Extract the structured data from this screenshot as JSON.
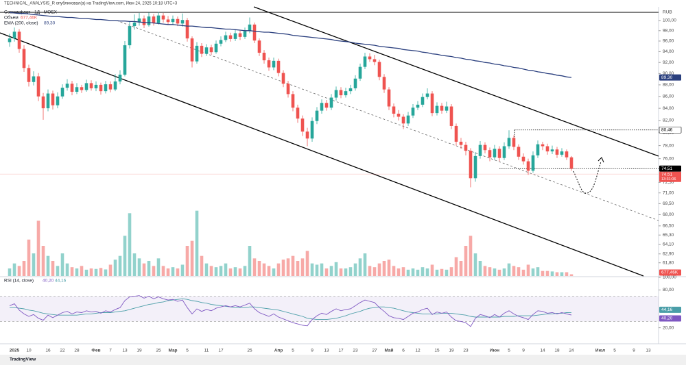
{
  "header": {
    "author": "TECHNICAL_ANALYSIS_R опубликовал(а) на TradingView.com, Июн 24, 2025 10:18 UTC+3",
    "brand": "TradingView"
  },
  "chart_data": {
    "type": "candlestick",
    "title": "Совкомфлот · 1Д · MOEX",
    "currency": "RUB",
    "log_scale": true,
    "up_color": "#26a69a",
    "down_color": "#ef5350",
    "categories": [
      null,
      "2025",
      null,
      null,
      "10",
      null,
      null,
      null,
      "16",
      null,
      null,
      "22",
      null,
      null,
      "28",
      null,
      null,
      null,
      "Фев",
      null,
      null,
      "7",
      null,
      null,
      "13",
      null,
      null,
      "19",
      null,
      null,
      null,
      "25",
      null,
      null,
      "Мар",
      null,
      null,
      "5",
      null,
      null,
      null,
      "11",
      null,
      null,
      "17",
      null,
      null,
      null,
      null,
      null,
      "25",
      null,
      null,
      null,
      null,
      null,
      "Апр",
      null,
      null,
      "5",
      null,
      null,
      null,
      "9",
      null,
      null,
      "13",
      null,
      null,
      "17",
      null,
      null,
      "23",
      null,
      null,
      null,
      "27",
      null,
      null,
      "Май",
      null,
      null,
      "6",
      null,
      null,
      "12",
      null,
      null,
      null,
      "15",
      null,
      null,
      "19",
      null,
      null,
      "23",
      null,
      null,
      null,
      null,
      null,
      "Июн",
      null,
      null,
      "5",
      null,
      null,
      "9",
      null,
      null,
      null,
      "14",
      null,
      null,
      "18",
      null,
      null,
      "24",
      null,
      null,
      null,
      null,
      null,
      "Июл",
      null,
      null,
      "5",
      null,
      null,
      null,
      "9",
      null,
      null,
      "13"
    ],
    "open": [
      95.8,
      96.5,
      97.8,
      94.5,
      91,
      88.5,
      89.5,
      86,
      84,
      86.5,
      84.5,
      86,
      87.5,
      88.2,
      86.8,
      87.6,
      87.1,
      88.3,
      87.4,
      88,
      86.9,
      88.1,
      87.2,
      88.6,
      89.8,
      95.2,
      98.9,
      99.6,
      100.4,
      99.1,
      100.8,
      99.5,
      101,
      100.2,
      99.7,
      100.3,
      99.4,
      100.1,
      96.5,
      92.2,
      95.1,
      93.6,
      94.8,
      93.9,
      95.5,
      96.2,
      97.1,
      96.4,
      97.5,
      96.8,
      97.9,
      99.2,
      96.1,
      93.8,
      92.4,
      91.1,
      92.3,
      90.1,
      88.2,
      86.4,
      84.1,
      82.3,
      80.2,
      79.1,
      81.9,
      83.6,
      84.9,
      84.1,
      85.8,
      87.1,
      86.2,
      86.9,
      87.4,
      89.1,
      91.2,
      93.1,
      92.6,
      92.1,
      89.4,
      87.2,
      84.3,
      83.1,
      82.6,
      81.5,
      82.8,
      84.1,
      84.6,
      85.9,
      86.5,
      83.2,
      84.4,
      83.6,
      84.3,
      81.1,
      78.6,
      78.1,
      77.2,
      73.1,
      76.4,
      78.1,
      77.3,
      76.2,
      77.5,
      76.1,
      77.9,
      79.2,
      77.8,
      76.3,
      75.6,
      74.2,
      76.5,
      78.2,
      77.9,
      77.1,
      77.4,
      76.6,
      77.1,
      76.2,
      null,
      null,
      null,
      null,
      null,
      null,
      null,
      null,
      null,
      null,
      null,
      null,
      null,
      null,
      null,
      null
    ],
    "high": [
      97.4,
      98.6,
      98.3,
      95.2,
      91.6,
      90.4,
      90.1,
      86.6,
      87.2,
      87,
      86.7,
      88.1,
      89,
      88.7,
      88.3,
      88,
      88.9,
      88.8,
      88.6,
      88.4,
      88.7,
      88.6,
      89.9,
      90.6,
      96,
      99.8,
      101.2,
      101.5,
      101,
      101.6,
      101.3,
      101.7,
      101.5,
      100.9,
      101,
      100.8,
      101.4,
      100.5,
      96.9,
      95.8,
      95.6,
      95.4,
      95.3,
      96.1,
      96.9,
      97.8,
      97.6,
      98.2,
      98,
      98.6,
      100.6,
      99.6,
      96.5,
      94.3,
      92.9,
      92.9,
      92.7,
      90.6,
      88.7,
      86.9,
      84.6,
      82.8,
      80.8,
      82.5,
      84.2,
      85.5,
      85.4,
      86.4,
      87.7,
      87.6,
      87.5,
      88,
      89.7,
      91.8,
      93.8,
      93.7,
      93.4,
      92.5,
      89.9,
      87.6,
      84.8,
      83.7,
      83,
      83.4,
      84.7,
      85.2,
      86.5,
      87.4,
      86.9,
      85,
      84.9,
      85.1,
      84.7,
      81.5,
      79.2,
      78.6,
      77.6,
      77,
      78.7,
      78.5,
      77.7,
      78.1,
      77.9,
      78.5,
      80.4,
      79.6,
      78.2,
      76.8,
      76,
      77.1,
      78.8,
      78.6,
      78.3,
      78,
      77.8,
      77.6,
      77.4,
      76.4,
      null,
      null,
      null,
      null,
      null,
      null,
      null,
      null,
      null,
      null,
      null,
      null,
      null,
      null,
      null,
      null
    ],
    "low": [
      94.9,
      95.9,
      93.8,
      90.3,
      87.7,
      87.9,
      85.2,
      82.1,
      83.5,
      83.8,
      84,
      85.6,
      87,
      86.2,
      86.4,
      86.6,
      86.8,
      87,
      86.9,
      86.3,
      86.5,
      86.7,
      86.9,
      88.1,
      89.5,
      94.6,
      98.2,
      99,
      98.5,
      98.8,
      99,
      99.2,
      99.6,
      99.1,
      99.2,
      98.9,
      98.8,
      95.9,
      91.1,
      91.8,
      93,
      93.2,
      93.4,
      93.6,
      95,
      95.8,
      95.9,
      96,
      96.2,
      96.4,
      97.5,
      95.6,
      93.2,
      91.8,
      90.5,
      90.6,
      89.5,
      87.6,
      85.8,
      83.5,
      81.6,
      79.5,
      77.9,
      78.6,
      81.4,
      83.1,
      83.6,
      83.7,
      85.3,
      85.7,
      85.8,
      86.4,
      87,
      88.7,
      90.8,
      92.1,
      91.5,
      88.8,
      86.6,
      83.7,
      82.5,
      82,
      80.6,
      81.1,
      82.4,
      83.7,
      84.2,
      85.5,
      82.7,
      82.8,
      83.1,
      83.2,
      80.6,
      78,
      77.5,
      76.5,
      71.8,
      72.6,
      76,
      76.8,
      75.6,
      75.8,
      75.6,
      75.8,
      77.5,
      77.3,
      75.8,
      75.1,
      73.6,
      73.9,
      76.1,
      77.3,
      76.6,
      76.7,
      76.1,
      76.3,
      75.8,
      74.2,
      null,
      null,
      null,
      null,
      null,
      null,
      null,
      null,
      null,
      null,
      null,
      null,
      null,
      null,
      null,
      null
    ],
    "close": [
      96.5,
      97.8,
      94.5,
      91,
      88.5,
      89.5,
      86,
      84,
      86.5,
      84.5,
      86,
      87.5,
      88.2,
      86.8,
      87.6,
      87.1,
      88.3,
      87.4,
      88,
      86.9,
      88.1,
      87.2,
      88.6,
      89.8,
      95.2,
      98.9,
      99.6,
      100.4,
      99.1,
      100.8,
      99.5,
      101,
      100.2,
      99.7,
      100.3,
      99.4,
      100.1,
      96.5,
      92.2,
      95.1,
      93.6,
      94.8,
      93.9,
      95.5,
      96.2,
      97.1,
      96.4,
      97.5,
      96.8,
      97.9,
      99.2,
      96.1,
      93.8,
      92.4,
      91.1,
      92.3,
      90.1,
      88.2,
      86.4,
      84.1,
      82.3,
      80.2,
      79.1,
      81.9,
      83.6,
      84.9,
      84.1,
      85.8,
      87.1,
      86.2,
      86.9,
      87.4,
      89.1,
      91.2,
      93.1,
      92.6,
      92.1,
      89.4,
      87.2,
      84.3,
      83.1,
      82.6,
      81.5,
      82.8,
      84.1,
      84.6,
      85.9,
      86.5,
      83.2,
      84.4,
      83.6,
      84.3,
      81.1,
      78.6,
      78.1,
      77.2,
      73.1,
      76.4,
      78.1,
      77.3,
      76.2,
      77.5,
      76.1,
      77.9,
      79.2,
      77.8,
      76.3,
      75.6,
      74.2,
      76.5,
      78.2,
      77.9,
      77.1,
      77.4,
      76.6,
      77.1,
      76.2,
      74.51,
      null,
      null,
      null,
      null,
      null,
      null,
      null,
      null,
      null,
      null,
      null,
      null,
      null,
      null,
      null,
      null
    ],
    "last_price_label": "74,51",
    "countdown": "13:31:06",
    "level": {
      "value": 80.46,
      "label": "80,46"
    },
    "ylim": [
      60.2,
      102.75
    ],
    "yticks": [
      {
        "value": 100,
        "label": "100,00"
      },
      {
        "value": 98,
        "label": "98,00"
      },
      {
        "value": 96,
        "label": "96,00"
      },
      {
        "value": 94,
        "label": "94,00"
      },
      {
        "value": 92,
        "label": "92,00"
      },
      {
        "value": 90,
        "label": "90,00"
      },
      {
        "value": 88,
        "label": "88,00"
      },
      {
        "value": 86,
        "label": "86,00"
      },
      {
        "value": 84,
        "label": "84,00"
      },
      {
        "value": 82,
        "label": "82,00"
      },
      {
        "value": 80,
        "label": "80,00"
      },
      {
        "value": 78,
        "label": "78,00"
      },
      {
        "value": 76,
        "label": "76,00"
      },
      {
        "value": 72.5,
        "label": "72,50"
      },
      {
        "value": 71,
        "label": "71,00"
      },
      {
        "value": 69.5,
        "label": "69,50"
      },
      {
        "value": 68,
        "label": "68,00"
      },
      {
        "value": 66.5,
        "label": "66,50"
      },
      {
        "value": 65.3,
        "label": "65,30"
      },
      {
        "value": 64.1,
        "label": "64,10"
      },
      {
        "value": 62.9,
        "label": "62,90"
      },
      {
        "value": 61.8,
        "label": "61,80"
      }
    ],
    "volume": {
      "name": "Объем",
      "vlim": [
        0,
        30000
      ],
      "last_label": "677,46K",
      "values": [
        3000,
        5000,
        4000,
        6000,
        14500,
        9000,
        22000,
        12000,
        8000,
        6000,
        4000,
        9000,
        5000,
        3500,
        3000,
        4000,
        2500,
        3000,
        2800,
        3200,
        2600,
        4500,
        6500,
        8000,
        16000,
        25000,
        9000,
        7000,
        5000,
        6000,
        4000,
        7000,
        4000,
        3000,
        3500,
        3000,
        4500,
        12000,
        14000,
        26000,
        8000,
        5000,
        4000,
        3500,
        4000,
        5000,
        3000,
        3500,
        3000,
        4000,
        12000,
        7000,
        6000,
        5000,
        4000,
        3000,
        5000,
        6500,
        7000,
        8000,
        6000,
        7000,
        10000,
        5000,
        4500,
        5000,
        3000,
        4000,
        5500,
        3000,
        3000,
        3500,
        5000,
        7000,
        9000,
        4000,
        3500,
        5000,
        6000,
        6500,
        4000,
        3000,
        3500,
        2500,
        3000,
        2500,
        3500,
        3000,
        4500,
        2500,
        2800,
        2500,
        3500,
        7500,
        6000,
        12000,
        16000,
        9000,
        6000,
        4000,
        3500,
        3000,
        2500,
        3000,
        5000,
        4000,
        3500,
        2500,
        4500,
        3000,
        3500,
        2000,
        2000,
        1800,
        1500,
        1500,
        1500,
        677.46,
        null,
        null,
        null,
        null,
        null,
        null,
        null,
        null,
        null,
        null,
        null,
        null,
        null,
        null,
        null,
        null
      ]
    },
    "ema": {
      "name": "EMA (200, close)",
      "color": "#2a3f7e",
      "last_label": "89,30",
      "values": [
        101.6,
        101.5,
        101.4,
        101.4,
        101.3,
        101.2,
        101.1,
        101.0,
        100.9,
        100.8,
        100.8,
        100.7,
        100.6,
        100.6,
        100.5,
        100.4,
        100.4,
        100.3,
        100.2,
        100.2,
        100.1,
        100.0,
        100.0,
        99.9,
        99.9,
        99.8,
        99.8,
        99.7,
        99.6,
        99.6,
        99.5,
        99.4,
        99.3,
        99.2,
        99.2,
        99.1,
        99.0,
        98.9,
        98.9,
        98.8,
        98.7,
        98.6,
        98.6,
        98.5,
        98.4,
        98.3,
        98.3,
        98.2,
        98.1,
        98.0,
        98.0,
        97.9,
        97.8,
        97.7,
        97.7,
        97.6,
        97.5,
        97.4,
        97.3,
        97.1,
        97.0,
        96.9,
        96.8,
        96.7,
        96.6,
        96.5,
        96.4,
        96.3,
        96.1,
        96.0,
        95.9,
        95.8,
        95.6,
        95.5,
        95.4,
        95.3,
        95.2,
        95.0,
        94.9,
        94.8,
        94.7,
        94.6,
        94.4,
        94.3,
        94.2,
        94.1,
        93.9,
        93.8,
        93.6,
        93.5,
        93.3,
        93.2,
        93.1,
        92.9,
        92.8,
        92.6,
        92.5,
        92.3,
        92.2,
        92.0,
        91.9,
        91.7,
        91.6,
        91.4,
        91.3,
        91.1,
        91.0,
        90.8,
        90.6,
        90.5,
        90.3,
        90.2,
        90.0,
        89.9,
        89.7,
        89.6,
        89.4,
        89.3,
        null,
        null,
        null,
        null,
        null,
        null,
        null,
        null,
        null,
        null,
        null,
        null,
        null,
        null,
        null,
        null
      ]
    },
    "rsi": {
      "name": "RSI (14, close)",
      "color": "#7e57c2",
      "last_label": "40,20",
      "ma_color": "#4a9ea8",
      "ma_label": "44,16",
      "ylim": [
        0,
        100
      ],
      "bands": [
        30,
        70
      ],
      "yticks": [
        {
          "value": 100,
          "label": "100,00"
        },
        {
          "value": 80,
          "label": "80,00"
        },
        {
          "value": 20,
          "label": "20,00"
        }
      ],
      "values": [
        55,
        58,
        48,
        42,
        38,
        41,
        35,
        32,
        40,
        36,
        40,
        44,
        46,
        42,
        45,
        44,
        47,
        45,
        46,
        43,
        47,
        45,
        49,
        52,
        63,
        69,
        70,
        71,
        67,
        70,
        66,
        69,
        66,
        64,
        65,
        62,
        64,
        52,
        42,
        50,
        46,
        49,
        47,
        51,
        53,
        55,
        53,
        55,
        53,
        56,
        59,
        50,
        44,
        41,
        38,
        42,
        37,
        34,
        31,
        28,
        26,
        24,
        23,
        33,
        39,
        43,
        41,
        46,
        50,
        47,
        49,
        50,
        55,
        60,
        64,
        62,
        60,
        52,
        46,
        39,
        36,
        35,
        33,
        38,
        43,
        45,
        49,
        51,
        41,
        45,
        43,
        45,
        37,
        31,
        30,
        28,
        22,
        35,
        41,
        39,
        36,
        41,
        37,
        43,
        47,
        42,
        38,
        36,
        33,
        41,
        47,
        46,
        43,
        44,
        42,
        44,
        42,
        40.2,
        null,
        null,
        null,
        null,
        null,
        null,
        null,
        null,
        null,
        null,
        null,
        null,
        null,
        null,
        null,
        null
      ],
      "ma_values": [
        52,
        52,
        51,
        50,
        48,
        47,
        45,
        43,
        42,
        41,
        40,
        40,
        40,
        40,
        40,
        41,
        42,
        42,
        43,
        44,
        44,
        44,
        45,
        46,
        47,
        49,
        51,
        53,
        55,
        57,
        58,
        60,
        61,
        63,
        64,
        65,
        66,
        65,
        63,
        62,
        60,
        59,
        57,
        56,
        55,
        54,
        53,
        52,
        52,
        52,
        53,
        53,
        52,
        51,
        50,
        49,
        48,
        46,
        44,
        42,
        40,
        38,
        35,
        34,
        33,
        33,
        33,
        34,
        35,
        37,
        39,
        42,
        44,
        46,
        49,
        51,
        52,
        53,
        53,
        52,
        51,
        49,
        47,
        45,
        44,
        43,
        42,
        42,
        42,
        42,
        43,
        43,
        43,
        42,
        41,
        40,
        38,
        37,
        37,
        37,
        37,
        37,
        37,
        38,
        38,
        38,
        39,
        39,
        39,
        39,
        40,
        41,
        42,
        42,
        43,
        43,
        44,
        44.16,
        null,
        null,
        null,
        null,
        null,
        null,
        null,
        null,
        null,
        null,
        null,
        null,
        null,
        null,
        null,
        null
      ]
    }
  }
}
